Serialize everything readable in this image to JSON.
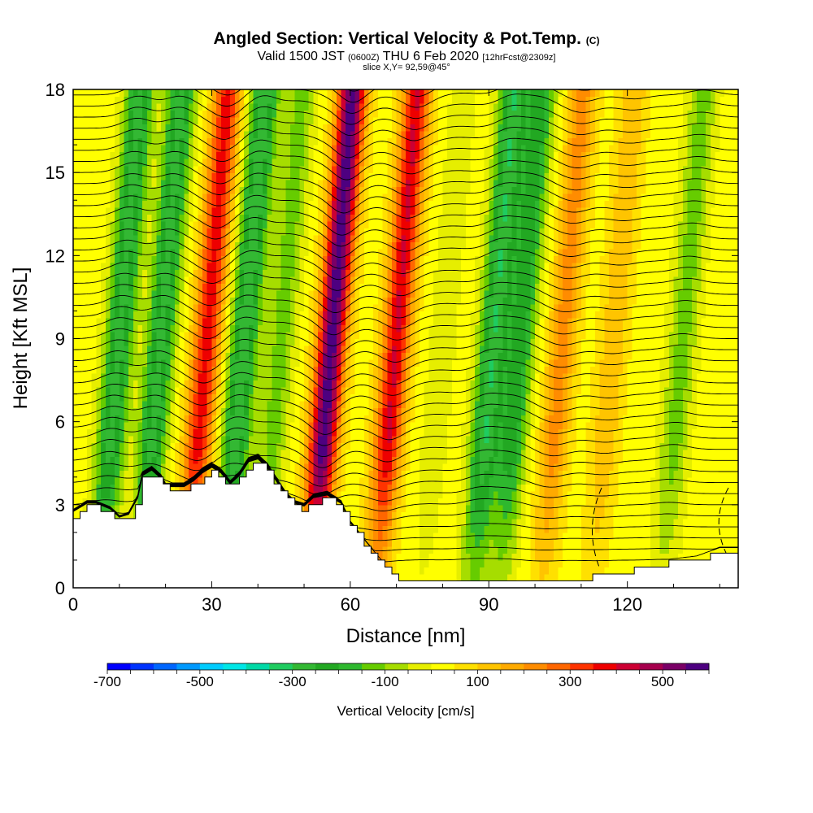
{
  "titles": {
    "main": "Angled Section: Vertical Velocity & Pot.Temp.",
    "main_suffix": "(C)",
    "valid_prefix": "Valid 1500 JST",
    "valid_utc": "(0600Z)",
    "valid_date": "THU 6 Feb 2020",
    "valid_fcst": "[12hrFcst@2309z]",
    "slice": "slice X,Y= 92,59@45°"
  },
  "chart_data": {
    "type": "heatmap",
    "xlabel": "Distance [nm]",
    "ylabel": "Height [Kft MSL]",
    "xlim": [
      0,
      144
    ],
    "ylim": [
      0,
      18
    ],
    "x_ticks": [
      0,
      30,
      60,
      90,
      120
    ],
    "y_ticks": [
      0,
      3,
      6,
      9,
      12,
      15,
      18
    ],
    "colorbar": {
      "label": "Vertical Velocity [cm/s]",
      "range": [
        -700,
        600
      ],
      "tick_values": [
        -700,
        -500,
        -300,
        -100,
        100,
        300,
        500
      ],
      "tick_labels": [
        "-700",
        "-500",
        "-300",
        "-100",
        "100",
        "300",
        "500"
      ],
      "colors": [
        "#0000ff",
        "#0033ff",
        "#0066ff",
        "#0099ff",
        "#00ccff",
        "#00e6e6",
        "#00d9a6",
        "#1fcc60",
        "#33b833",
        "#22a822",
        "#2eb82e",
        "#66cc00",
        "#a6dd00",
        "#e6ee00",
        "#ffff00",
        "#ffe000",
        "#ffc400",
        "#ffaa00",
        "#ff8c00",
        "#ff6600",
        "#ff3300",
        "#ee0000",
        "#cc0033",
        "#a6004d",
        "#7a0066",
        "#4d0080"
      ]
    },
    "bands": [
      {
        "x": 10,
        "w": -300
      },
      {
        "x": 19,
        "w": -300
      },
      {
        "x": 29,
        "w": 350
      },
      {
        "x": 37,
        "w": -320
      },
      {
        "x": 45,
        "w": -150
      },
      {
        "x": 56,
        "w": 560
      },
      {
        "x": 70,
        "w": 380
      },
      {
        "x": 80,
        "w": -60
      },
      {
        "x": 91,
        "w": -320
      },
      {
        "x": 97,
        "w": -250
      },
      {
        "x": 106,
        "w": 200
      },
      {
        "x": 117,
        "w": 120
      },
      {
        "x": 132,
        "w": -150
      }
    ],
    "terrain": {
      "x": [
        0,
        3,
        5,
        8,
        10,
        12,
        14,
        15,
        17,
        19,
        20,
        22,
        24,
        26,
        28,
        30,
        32,
        34,
        36,
        38,
        40,
        42,
        44,
        46,
        48,
        50,
        52,
        55,
        58,
        60,
        62,
        64,
        66,
        68,
        70,
        75,
        80,
        90,
        100,
        105,
        108,
        112,
        115,
        120,
        125,
        130,
        135,
        140,
        144
      ],
      "z": [
        2.6,
        2.9,
        2.9,
        2.7,
        2.4,
        2.5,
        3.1,
        3.9,
        4.1,
        3.8,
        3.5,
        3.5,
        3.5,
        3.7,
        4.0,
        4.2,
        4.0,
        3.6,
        3.9,
        4.4,
        4.5,
        4.2,
        3.7,
        3.2,
        2.9,
        2.8,
        3.1,
        3.2,
        2.9,
        2.2,
        1.8,
        1.4,
        1.0,
        0.6,
        0.35,
        0.35,
        0.35,
        0.35,
        0.35,
        0.35,
        0.35,
        0.35,
        0.6,
        0.6,
        0.8,
        0.9,
        1.0,
        1.3,
        1.3
      ]
    }
  }
}
